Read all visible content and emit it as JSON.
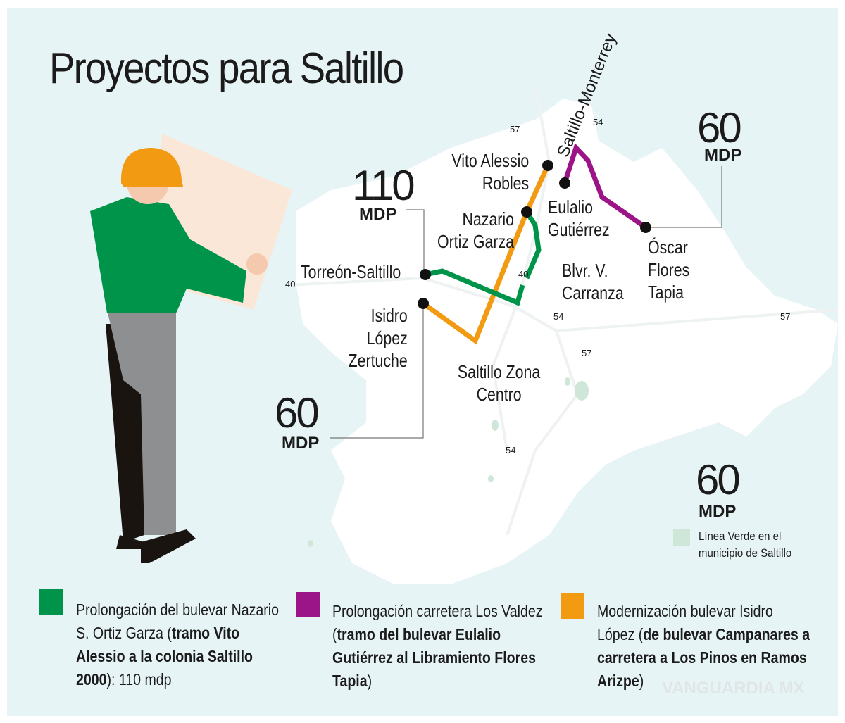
{
  "title": "Proyectos para Saltillo",
  "colors": {
    "green": "#00944a",
    "purple": "#9b1588",
    "orange": "#f29a12",
    "background": "#e7f4f6",
    "linea_verde": "#cfe7d8"
  },
  "map": {
    "road_labels": [
      "Saltillo-Monterrey",
      "57",
      "54",
      "40",
      "40",
      "54",
      "57",
      "57",
      "54"
    ],
    "places": {
      "vito": "Vito Alessio Robles",
      "nazario": "Nazario Ortiz Garza",
      "torreon": "Torreón-Saltillo",
      "isidro": "Isidro López Zertuche",
      "eulalio": "Eulalio Gutiérrez",
      "oscar": "Óscar Flores Tapia",
      "carranza": "Blvr. V. Carranza",
      "centro": "Saltillo Zona Centro"
    },
    "amounts": {
      "green": {
        "value": "110",
        "unit": "MDP"
      },
      "orange": {
        "value": "60",
        "unit": "MDP"
      },
      "purple": {
        "value": "60",
        "unit": "MDP"
      },
      "linea_verde": {
        "value": "60",
        "unit": "MDP",
        "label": "Línea Verde en el municipio de Saltillo"
      }
    }
  },
  "legend": [
    {
      "color": "green",
      "text": "Prolongación del  bulevar Nazario S. Ortiz Garza (",
      "bold": "tramo Vito Alessio a la colonia Saltillo 2000",
      "tail": "): 110 mdp"
    },
    {
      "color": "purple",
      "text": "Prolongación carretera Los Valdez (",
      "bold": "tramo del bulevar Eulalio Gutiérrez al Libramiento Flores Tapia",
      "tail": ")"
    },
    {
      "color": "orange",
      "text": "Modernización bulevar Isidro López (",
      "bold": "de bulevar Campanares a carretera a Los Pinos en Ramos Arizpe",
      "tail": ")"
    }
  ],
  "watermark": "VANGUARDIA MX"
}
